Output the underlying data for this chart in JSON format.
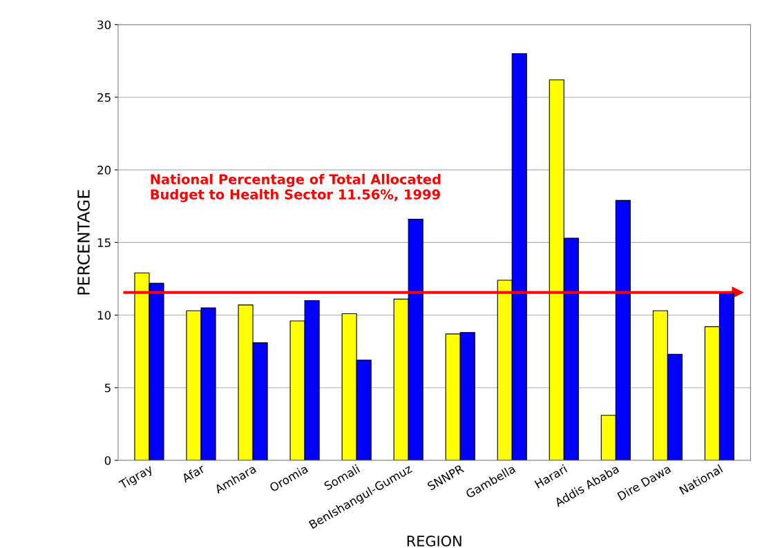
{
  "chart_data": {
    "type": "bar",
    "xlabel": "REGION",
    "ylabel": "PERCENTAGE",
    "categories": [
      "Tigray",
      "Afar",
      "Amhara",
      "Oromia",
      "Somali",
      "BenIshangul-Gumuz",
      "SNNPR",
      "Gambella",
      "Harari",
      "Addis Ababa",
      "Dire Dawa",
      "National"
    ],
    "series": [
      {
        "color": "#ffff00",
        "values": [
          12.9,
          10.3,
          10.7,
          9.6,
          10.1,
          11.1,
          8.7,
          12.4,
          26.2,
          3.1,
          10.3,
          9.2
        ]
      },
      {
        "color": "#0000ff",
        "values": [
          12.2,
          10.5,
          8.1,
          11.0,
          6.9,
          16.6,
          8.8,
          28.0,
          15.3,
          17.9,
          7.3,
          11.5
        ]
      }
    ],
    "ylim": [
      0,
      30
    ],
    "yticks": [
      0,
      5,
      10,
      15,
      20,
      25,
      30
    ],
    "grid": "y",
    "legend": false,
    "ref_lines": [
      {
        "axis": "y",
        "value": 11.56,
        "color": "#ff0000",
        "line_style": "solid"
      }
    ],
    "annotations": [
      "National Percentage of Total Allocated\nBudget to Health Sector 11.56%, 1999"
    ]
  }
}
